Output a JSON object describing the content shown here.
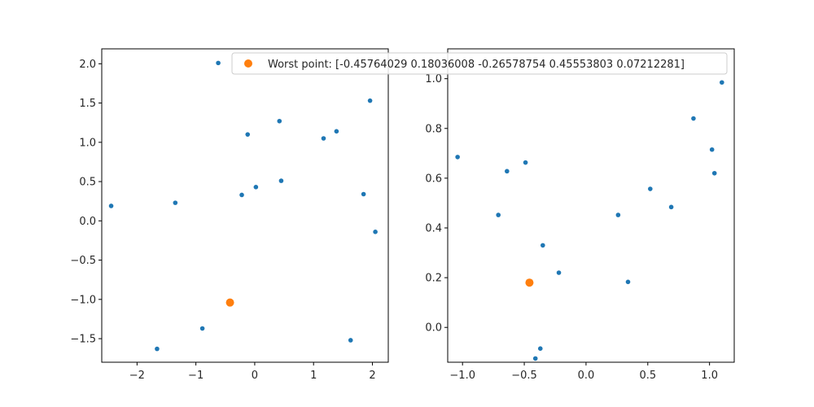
{
  "colors": {
    "points": "#1f77b4",
    "worst": "#ff7f0e",
    "axis": "#000000",
    "background": "#ffffff"
  },
  "legend": {
    "label": "Worst point: [-0.45764029  0.18036008 -0.26578754  0.45553803  0.07212281]",
    "placement": "upper-right"
  },
  "chart_data": [
    {
      "type": "scatter",
      "title": "",
      "xlabel": "",
      "ylabel": "",
      "xlim": [
        -2.6,
        2.27
      ],
      "ylim": [
        -1.8,
        2.19
      ],
      "xticks": [
        -2,
        -1,
        0,
        1,
        2
      ],
      "yticks": [
        -1.5,
        -1.0,
        -0.5,
        0.0,
        0.5,
        1.0,
        1.5,
        2.0
      ],
      "xtick_labels": [
        "−2",
        "−1",
        "0",
        "1",
        "2"
      ],
      "ytick_labels": [
        "−1.5",
        "−1.0",
        "−0.5",
        "0.0",
        "0.5",
        "1.0",
        "1.5",
        "2.0"
      ],
      "grid": false,
      "points": {
        "x": [
          -2.44,
          -1.35,
          -0.62,
          -0.12,
          0.42,
          1.17,
          1.39,
          1.96,
          -0.22,
          0.02,
          0.45,
          1.85,
          2.05,
          -1.66,
          -0.89,
          1.63
        ],
        "y": [
          0.19,
          0.23,
          2.01,
          1.1,
          1.27,
          1.05,
          1.14,
          1.53,
          0.33,
          0.43,
          0.51,
          0.34,
          -0.14,
          -1.63,
          -1.37,
          -1.52
        ]
      },
      "worst": {
        "x": -0.42,
        "y": -1.04
      }
    },
    {
      "type": "scatter",
      "title": "",
      "xlabel": "",
      "ylabel": "",
      "xlim": [
        -1.12,
        1.2
      ],
      "ylim": [
        -0.14,
        1.12
      ],
      "xticks": [
        -1.0,
        -0.5,
        0.0,
        0.5,
        1.0
      ],
      "yticks": [
        0.0,
        0.2,
        0.4,
        0.6,
        0.8,
        1.0
      ],
      "xtick_labels": [
        "−1.0",
        "−0.5",
        "0.0",
        "0.5",
        "1.0"
      ],
      "ytick_labels": [
        "0.0",
        "0.2",
        "0.4",
        "0.6",
        "0.8",
        "1.0"
      ],
      "grid": false,
      "points": {
        "x": [
          -1.04,
          -0.64,
          -0.49,
          -0.71,
          -0.35,
          -0.22,
          -0.37,
          -0.41,
          0.26,
          0.34,
          0.52,
          0.69,
          0.87,
          1.02,
          1.04,
          1.1
        ],
        "y": [
          0.685,
          0.628,
          0.663,
          0.452,
          0.33,
          0.22,
          -0.085,
          -0.125,
          0.452,
          0.183,
          0.557,
          0.484,
          0.84,
          0.715,
          0.62,
          0.985
        ]
      },
      "worst": {
        "x": -0.458,
        "y": 0.18
      }
    }
  ]
}
